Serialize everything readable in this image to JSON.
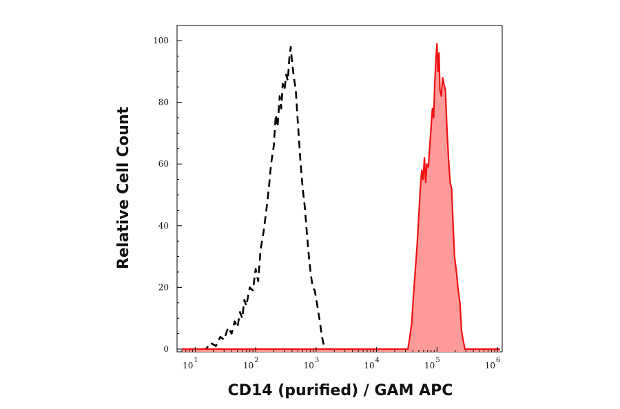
{
  "chart_data": {
    "type": "area",
    "xlabel": "CD14 (purified) / GAM APC",
    "ylabel": "Relative Cell Count",
    "xscale": "log",
    "xlim": [
      5,
      1200000
    ],
    "ylim": [
      0,
      100
    ],
    "x_tick_base": "10",
    "x_tick_exponents": [
      "1",
      "2",
      "3",
      "4",
      "5",
      "6"
    ],
    "y_ticks": [
      "0",
      "20",
      "40",
      "60",
      "80",
      "100"
    ],
    "grid": false,
    "legend": "none",
    "series": [
      {
        "style": "dashed",
        "color": "#000000",
        "fill": "none",
        "points": [
          [
            8,
            0
          ],
          [
            12,
            0
          ],
          [
            15,
            0
          ],
          [
            18,
            2
          ],
          [
            22,
            1
          ],
          [
            26,
            4
          ],
          [
            30,
            3
          ],
          [
            35,
            7
          ],
          [
            40,
            5
          ],
          [
            45,
            9
          ],
          [
            50,
            7
          ],
          [
            55,
            12
          ],
          [
            60,
            10
          ],
          [
            65,
            16
          ],
          [
            70,
            14
          ],
          [
            80,
            20
          ],
          [
            90,
            19
          ],
          [
            100,
            26
          ],
          [
            110,
            22
          ],
          [
            120,
            32
          ],
          [
            135,
            38
          ],
          [
            150,
            45
          ],
          [
            165,
            52
          ],
          [
            180,
            60
          ],
          [
            200,
            66
          ],
          [
            215,
            76
          ],
          [
            230,
            72
          ],
          [
            250,
            82
          ],
          [
            265,
            78
          ],
          [
            280,
            86
          ],
          [
            300,
            84
          ],
          [
            320,
            89
          ],
          [
            340,
            87
          ],
          [
            360,
            94
          ],
          [
            380,
            98
          ],
          [
            400,
            93
          ],
          [
            430,
            88
          ],
          [
            460,
            84
          ],
          [
            500,
            73
          ],
          [
            550,
            61
          ],
          [
            600,
            52
          ],
          [
            650,
            46
          ],
          [
            700,
            38
          ],
          [
            760,
            30
          ],
          [
            820,
            24
          ],
          [
            880,
            20
          ],
          [
            950,
            19
          ],
          [
            1050,
            14
          ],
          [
            1150,
            9
          ],
          [
            1250,
            4
          ],
          [
            1350,
            1
          ],
          [
            1500,
            0
          ],
          [
            2000,
            0
          ]
        ]
      },
      {
        "style": "solid",
        "color": "#ee1111",
        "fill": "#ff9a9a",
        "points": [
          [
            6,
            0
          ],
          [
            30000,
            0
          ],
          [
            33000,
            0
          ],
          [
            35000,
            3
          ],
          [
            38000,
            8
          ],
          [
            41000,
            18
          ],
          [
            44000,
            26
          ],
          [
            47000,
            34
          ],
          [
            50000,
            43
          ],
          [
            53000,
            52
          ],
          [
            56000,
            58
          ],
          [
            59000,
            55
          ],
          [
            62000,
            62
          ],
          [
            65000,
            54
          ],
          [
            68000,
            60
          ],
          [
            72000,
            59
          ],
          [
            76000,
            66
          ],
          [
            80000,
            72
          ],
          [
            84000,
            78
          ],
          [
            88000,
            75
          ],
          [
            92000,
            86
          ],
          [
            96000,
            94
          ],
          [
            100000,
            99
          ],
          [
            104000,
            90
          ],
          [
            108000,
            96
          ],
          [
            112000,
            84
          ],
          [
            118000,
            82
          ],
          [
            124000,
            88
          ],
          [
            130000,
            86
          ],
          [
            138000,
            84
          ],
          [
            146000,
            72
          ],
          [
            155000,
            62
          ],
          [
            165000,
            54
          ],
          [
            175000,
            52
          ],
          [
            185000,
            40
          ],
          [
            195000,
            30
          ],
          [
            210000,
            25
          ],
          [
            225000,
            19
          ],
          [
            240000,
            15
          ],
          [
            255000,
            6
          ],
          [
            270000,
            3
          ],
          [
            290000,
            0
          ],
          [
            1100000,
            0
          ]
        ]
      }
    ]
  }
}
